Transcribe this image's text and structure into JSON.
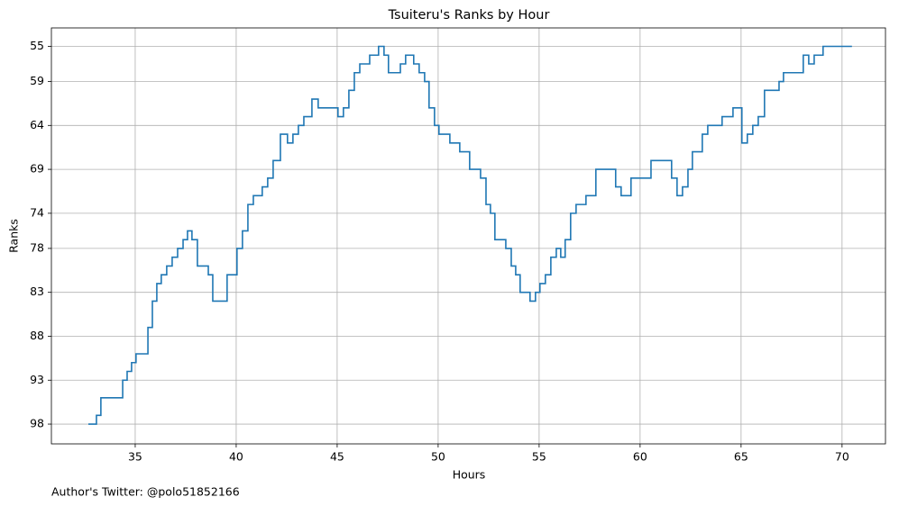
{
  "chart_data": {
    "type": "line",
    "drawstyle": "steps-post",
    "title": "Tsuiteru's Ranks by Hour",
    "xlabel": "Hours",
    "ylabel": "Ranks",
    "footnote": "Author's Twitter: @polo51852166",
    "color": "#1f77b4",
    "grid": true,
    "y_inverted": true,
    "xlim": [
      30.85,
      72.15
    ],
    "xticks": [
      35,
      40,
      45,
      50,
      55,
      60,
      65,
      70
    ],
    "ylim": [
      52.9,
      100.25
    ],
    "yticks": [
      55,
      59,
      64,
      69,
      74,
      78,
      83,
      88,
      93,
      98
    ],
    "x": [
      32.68,
      33.08,
      33.3,
      34.38,
      34.6,
      34.82,
      35.04,
      35.63,
      35.85,
      36.07,
      36.29,
      36.56,
      36.83,
      37.1,
      37.37,
      37.59,
      37.81,
      38.08,
      38.62,
      38.84,
      39.55,
      40.04,
      40.31,
      40.58,
      40.85,
      41.29,
      41.56,
      41.83,
      42.19,
      42.54,
      42.81,
      43.08,
      43.35,
      43.75,
      44.06,
      45.04,
      45.31,
      45.58,
      45.85,
      46.12,
      46.61,
      47.05,
      47.32,
      47.54,
      48.13,
      48.39,
      48.79,
      49.06,
      49.33,
      49.55,
      49.82,
      50.04,
      50.58,
      51.07,
      51.56,
      52.1,
      52.37,
      52.59,
      52.81,
      53.35,
      53.62,
      53.84,
      54.06,
      54.55,
      54.82,
      55.04,
      55.31,
      55.58,
      55.85,
      56.07,
      56.29,
      56.56,
      56.83,
      57.32,
      57.81,
      58.79,
      59.06,
      59.55,
      60.54,
      61.56,
      61.83,
      62.1,
      62.37,
      62.59,
      63.08,
      63.35,
      64.06,
      64.6,
      65.04,
      65.31,
      65.58,
      65.85,
      66.16,
      66.88,
      67.1,
      68.08,
      68.35,
      68.62,
      69.06,
      70.49
    ],
    "values": [
      98,
      97,
      95,
      93,
      92,
      91,
      90,
      87,
      84,
      82,
      81,
      80,
      79,
      78,
      77,
      76,
      77,
      80,
      81,
      84,
      81,
      78,
      76,
      73,
      72,
      71,
      70,
      68,
      65,
      66,
      65,
      64,
      63,
      61,
      62,
      63,
      62,
      60,
      58,
      57,
      56,
      55,
      56,
      58,
      57,
      56,
      57,
      58,
      59,
      62,
      64,
      65,
      66,
      67,
      69,
      70,
      73,
      74,
      77,
      78,
      80,
      81,
      83,
      84,
      83,
      82,
      81,
      79,
      78,
      79,
      77,
      74,
      73,
      72,
      69,
      71,
      72,
      70,
      68,
      70,
      72,
      71,
      69,
      67,
      65,
      64,
      63,
      62,
      66,
      65,
      64,
      63,
      60,
      59,
      58,
      56,
      57,
      56,
      55,
      55
    ]
  }
}
